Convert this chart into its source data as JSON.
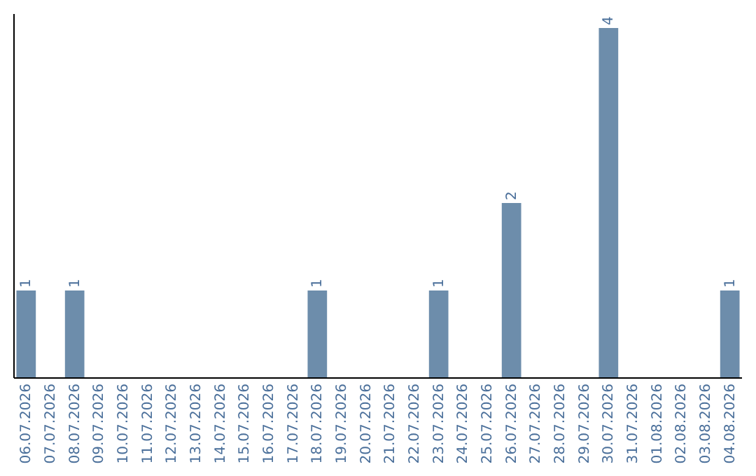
{
  "chart_data": {
    "type": "bar",
    "categories": [
      "06.07.2026",
      "07.07.2026",
      "08.07.2026",
      "09.07.2026",
      "10.07.2026",
      "11.07.2026",
      "12.07.2026",
      "13.07.2026",
      "14.07.2026",
      "15.07.2026",
      "16.07.2026",
      "17.07.2026",
      "18.07.2026",
      "19.07.2026",
      "20.07.2026",
      "21.07.2026",
      "22.07.2026",
      "23.07.2026",
      "24.07.2026",
      "25.07.2026",
      "26.07.2026",
      "27.07.2026",
      "28.07.2026",
      "29.07.2026",
      "30.07.2026",
      "31.07.2026",
      "01.08.2026",
      "02.08.2026",
      "03.08.2026",
      "04.08.2026"
    ],
    "values": [
      1,
      0,
      1,
      0,
      0,
      0,
      0,
      0,
      0,
      0,
      0,
      0,
      1,
      0,
      0,
      0,
      0,
      1,
      0,
      0,
      2,
      0,
      0,
      0,
      4,
      0,
      0,
      0,
      0,
      1
    ],
    "value_labels": [
      "1",
      null,
      "1",
      null,
      null,
      null,
      null,
      null,
      null,
      null,
      null,
      null,
      "1",
      null,
      null,
      null,
      null,
      "1",
      null,
      null,
      "2",
      null,
      null,
      null,
      "4",
      null,
      null,
      null,
      null,
      "1"
    ],
    "color": "#6d8dab",
    "ylim": [
      0,
      4.16
    ],
    "tick_labels": "x"
  }
}
